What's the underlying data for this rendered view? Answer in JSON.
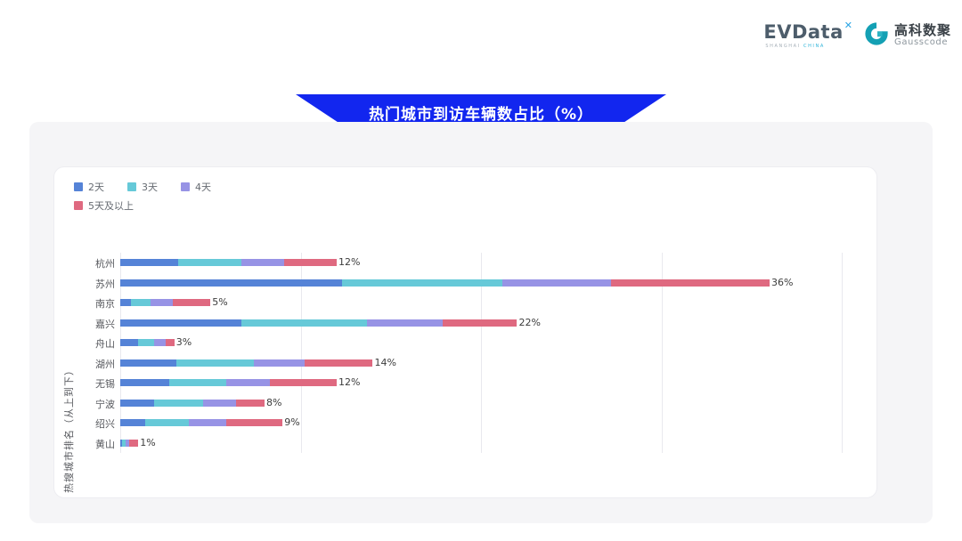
{
  "header": {
    "evdata": {
      "wordmark": "EVData",
      "mark": "✕",
      "sub_left": "SHANGHAI",
      "sub_right": "CHINA"
    },
    "gausscode": {
      "name_cn": "高科数聚",
      "name_en": "Gausscode",
      "icon_color": "#14a0b4"
    }
  },
  "title_banner": {
    "text": "热门城市到访车辆数占比（%）",
    "bg_color": "#1226ef",
    "text_color": "#ffffff"
  },
  "legend": {
    "rows": [
      [
        "2天",
        "3天",
        "4天"
      ],
      [
        "5天及以上"
      ]
    ],
    "items": [
      {
        "label": "2天",
        "color": "#5583d7"
      },
      {
        "label": "3天",
        "color": "#66c9d8"
      },
      {
        "label": "4天",
        "color": "#9793e5"
      },
      {
        "label": "5天及以上",
        "color": "#df6980"
      }
    ]
  },
  "chart_data": {
    "type": "bar",
    "subtype": "horizontal-stacked",
    "title": "热门城市到访车辆数占比（%）",
    "ylabel": "热搜城市排名（从上到下）",
    "xlabel": "",
    "categories": [
      "杭州",
      "苏州",
      "南京",
      "嘉兴",
      "舟山",
      "湖州",
      "无锡",
      "宁波",
      "绍兴",
      "黄山"
    ],
    "series": [
      {
        "name": "2天",
        "color": "#5583d7",
        "values": [
          3.2,
          12.3,
          0.6,
          6.7,
          1.0,
          3.1,
          2.7,
          1.9,
          1.4,
          0.1
        ]
      },
      {
        "name": "3天",
        "color": "#66c9d8",
        "values": [
          3.5,
          8.9,
          1.1,
          7.0,
          0.9,
          4.3,
          3.2,
          2.7,
          2.4,
          0.2
        ]
      },
      {
        "name": "4天",
        "color": "#9793e5",
        "values": [
          2.4,
          6.0,
          1.2,
          4.2,
          0.6,
          2.8,
          2.4,
          1.8,
          2.1,
          0.2
        ]
      },
      {
        "name": "5天及以上",
        "color": "#df6980",
        "values": [
          2.9,
          8.8,
          2.1,
          4.1,
          0.5,
          3.8,
          3.7,
          1.6,
          3.1,
          0.5
        ]
      }
    ],
    "totals": [
      12,
      36,
      5,
      22,
      3,
      14,
      12,
      8,
      9,
      1
    ],
    "total_labels": [
      "12%",
      "36%",
      "5%",
      "22%",
      "3%",
      "14%",
      "12%",
      "8%",
      "9%",
      "1%"
    ],
    "xlim": [
      0,
      40
    ],
    "grid_step": 10,
    "grid": "vertical-only",
    "legend_position": "top-left"
  }
}
